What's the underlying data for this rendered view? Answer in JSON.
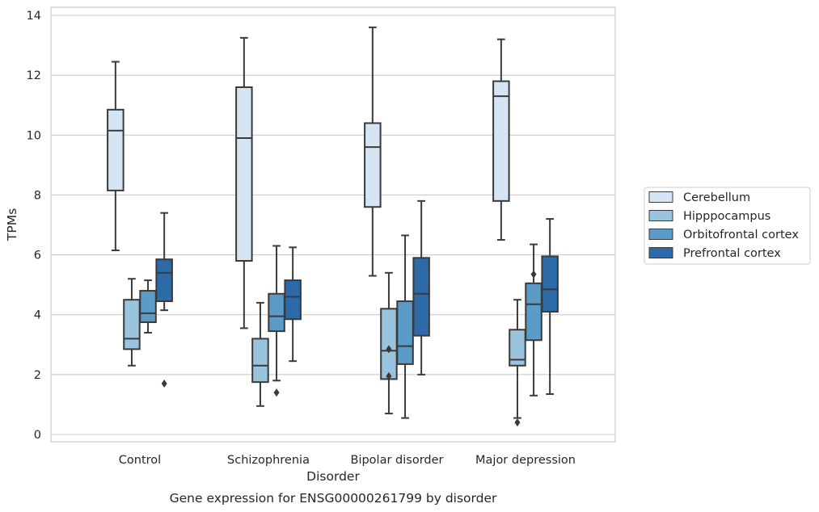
{
  "chart_data": {
    "type": "box",
    "title": "Gene expression for ENSG00000261799 by disorder",
    "xlabel": "Disorder",
    "ylabel": "TPMs",
    "ylim": [
      -0.25,
      14.25
    ],
    "yticks": [
      0,
      2,
      4,
      6,
      8,
      10,
      12,
      14
    ],
    "grid": "horizontal",
    "legend_position": "right",
    "categories": [
      "Control",
      "Schizophrenia",
      "Bipolar disorder",
      "Major depression"
    ],
    "series": [
      {
        "name": "Cerebellum",
        "color": "#d6e5f4",
        "boxes": [
          {
            "whislo": 6.15,
            "q1": 8.15,
            "med": 10.15,
            "q3": 10.85,
            "whishi": 12.45,
            "fliers": []
          },
          {
            "whislo": 3.55,
            "q1": 5.8,
            "med": 9.9,
            "q3": 11.6,
            "whishi": 13.25,
            "fliers": []
          },
          {
            "whislo": 5.3,
            "q1": 7.6,
            "med": 9.6,
            "q3": 10.4,
            "whishi": 13.6,
            "fliers": []
          },
          {
            "whislo": 6.5,
            "q1": 7.8,
            "med": 11.3,
            "q3": 11.8,
            "whishi": 13.2,
            "fliers": []
          }
        ]
      },
      {
        "name": "Hipppocampus",
        "color": "#9ac3de",
        "boxes": [
          {
            "whislo": 2.3,
            "q1": 2.85,
            "med": 3.2,
            "q3": 4.5,
            "whishi": 5.2,
            "fliers": []
          },
          {
            "whislo": 0.95,
            "q1": 1.75,
            "med": 2.3,
            "q3": 3.2,
            "whishi": 4.4,
            "fliers": []
          },
          {
            "whislo": 0.7,
            "q1": 1.85,
            "med": 2.8,
            "q3": 4.2,
            "whishi": 5.4,
            "fliers": [
              2.85,
              1.95
            ]
          },
          {
            "whislo": 0.55,
            "q1": 2.3,
            "med": 2.5,
            "q3": 3.5,
            "whishi": 4.5,
            "fliers": [
              0.4
            ]
          }
        ]
      },
      {
        "name": "Orbitofrontal cortex",
        "color": "#5b9bc8",
        "boxes": [
          {
            "whislo": 3.4,
            "q1": 3.75,
            "med": 4.05,
            "q3": 4.8,
            "whishi": 5.15,
            "fliers": []
          },
          {
            "whislo": 1.8,
            "q1": 3.45,
            "med": 3.95,
            "q3": 4.7,
            "whishi": 6.3,
            "fliers": [
              1.4
            ]
          },
          {
            "whislo": 0.55,
            "q1": 2.35,
            "med": 2.95,
            "q3": 4.45,
            "whishi": 6.65,
            "fliers": []
          },
          {
            "whislo": 1.3,
            "q1": 3.15,
            "med": 4.35,
            "q3": 5.05,
            "whishi": 6.35,
            "fliers": [
              5.35
            ]
          }
        ]
      },
      {
        "name": "Prefrontal cortex",
        "color": "#2d6aa8",
        "boxes": [
          {
            "whislo": 4.15,
            "q1": 4.45,
            "med": 5.4,
            "q3": 5.85,
            "whishi": 7.4,
            "fliers": [
              1.7
            ]
          },
          {
            "whislo": 2.45,
            "q1": 3.85,
            "med": 4.6,
            "q3": 5.15,
            "whishi": 6.25,
            "fliers": []
          },
          {
            "whislo": 2.0,
            "q1": 3.3,
            "med": 4.7,
            "q3": 5.9,
            "whishi": 7.8,
            "fliers": []
          },
          {
            "whislo": 1.35,
            "q1": 4.1,
            "med": 4.85,
            "q3": 5.95,
            "whishi": 7.2,
            "fliers": []
          }
        ]
      }
    ]
  }
}
